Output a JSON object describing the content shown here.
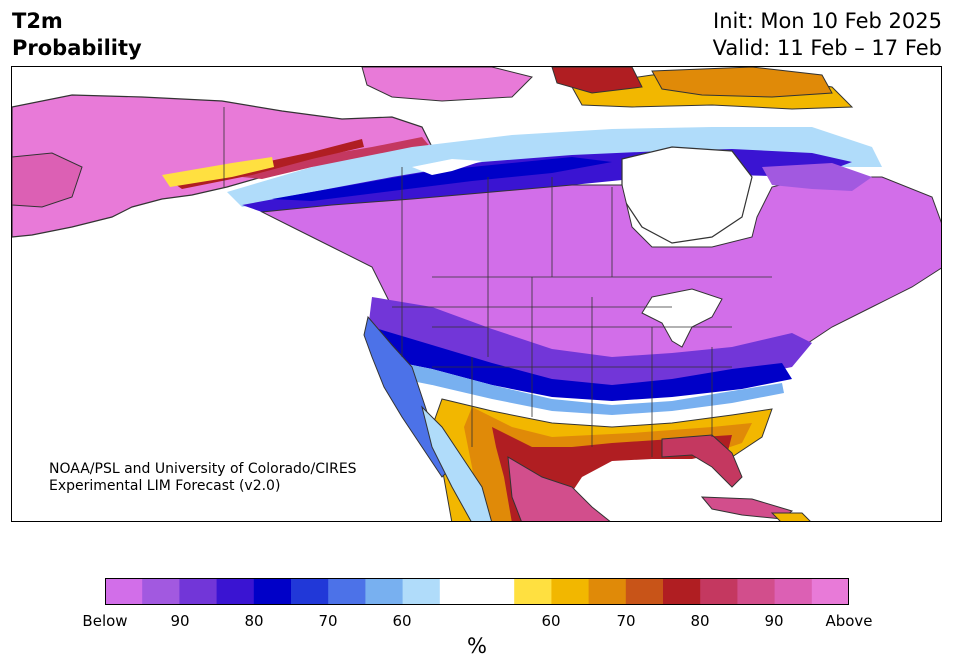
{
  "header": {
    "variable": "T2m",
    "product": "Probability",
    "init": "Init: Mon 10 Feb 2025",
    "valid": "Valid: 11 Feb – 17 Feb"
  },
  "credit": {
    "line1": "NOAA/PSL and University of Colorado/CIRES",
    "line2": "Experimental LIM Forecast (v2.0)"
  },
  "colors": {
    "below": [
      "#d26ee9",
      "#a259e0",
      "#7236d8",
      "#3a14d2",
      "#0000c8",
      "#2138d8",
      "#4c72e8",
      "#78b0f0",
      "#b0dcfa"
    ],
    "neutral": "#ffffff",
    "above": [
      "#ffe040",
      "#f2b700",
      "#e08a08",
      "#c85418",
      "#b01e22",
      "#c43860",
      "#d24e8c",
      "#dc60b4",
      "#e87ad8"
    ],
    "land_outline": "#333333",
    "ocean": "#ffffff"
  },
  "colorbar": {
    "tick_labels": [
      "Below",
      "90",
      "80",
      "70",
      "60",
      "60",
      "70",
      "80",
      "90",
      "Above"
    ],
    "unit": "%"
  }
}
